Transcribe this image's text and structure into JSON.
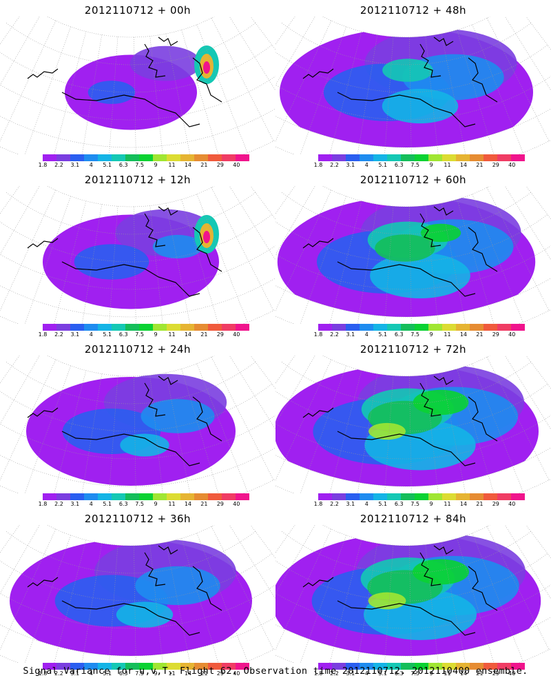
{
  "panels": [
    {
      "title": "2012110712 + 00h",
      "coverage": 0.35,
      "level": 0.15,
      "hotspot": true
    },
    {
      "title": "2012110712 + 48h",
      "coverage": 0.9,
      "level": 0.45,
      "hotspot": false
    },
    {
      "title": "2012110712 + 12h",
      "coverage": 0.55,
      "level": 0.25,
      "hotspot": true
    },
    {
      "title": "2012110712 + 60h",
      "coverage": 0.92,
      "level": 0.55,
      "hotspot": false
    },
    {
      "title": "2012110712 + 24h",
      "coverage": 0.7,
      "level": 0.3,
      "hotspot": false
    },
    {
      "title": "2012110712 + 72h",
      "coverage": 0.95,
      "level": 0.65,
      "hotspot": false
    },
    {
      "title": "2012110712 + 36h",
      "coverage": 0.85,
      "level": 0.35,
      "hotspot": false
    },
    {
      "title": "2012110712 + 84h",
      "coverage": 0.97,
      "level": 0.7,
      "hotspot": false
    }
  ],
  "colorbar": {
    "colors": [
      "#a020f0",
      "#7a3ee0",
      "#2a5ef0",
      "#1e8cf0",
      "#14b4e6",
      "#14c8b4",
      "#14be5a",
      "#0ad232",
      "#a0e632",
      "#dcdc32",
      "#e6b432",
      "#e68c32",
      "#f05a3c",
      "#f03c64",
      "#f0148c"
    ],
    "labels": [
      "1.8",
      "2.2",
      "3.1",
      "4",
      "5.1",
      "6.3",
      "7.5",
      "9",
      "11",
      "14",
      "21",
      "29",
      "40"
    ]
  },
  "caption": "Signal Variance for u,v,T. Flight 62. Observation time 2012110712. 2012110400 ensemble."
}
